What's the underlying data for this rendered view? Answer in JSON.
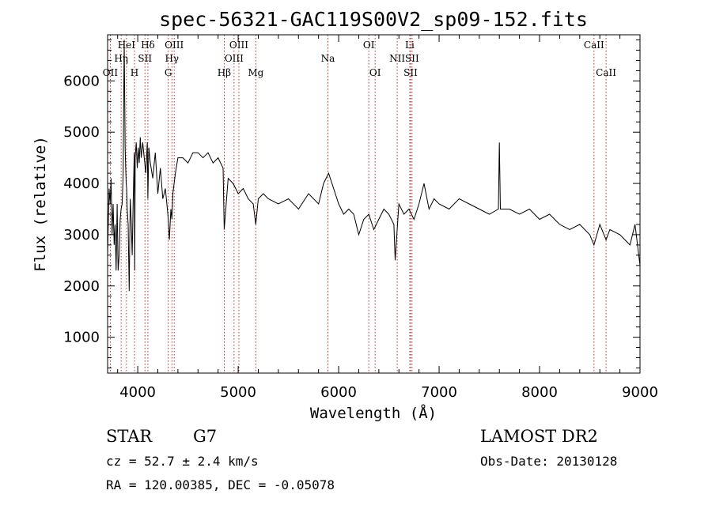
{
  "chart_data": {
    "type": "line",
    "title": "spec-56321-GAC119S00V2_sp09-152.fits",
    "xlabel": "Wavelength (Å)",
    "ylabel": "Flux (relative)",
    "xlim": [
      3700,
      9000
    ],
    "ylim": [
      300,
      6900
    ],
    "xticks": [
      4000,
      5000,
      6000,
      7000,
      8000,
      9000
    ],
    "yticks": [
      1000,
      2000,
      3000,
      4000,
      5000,
      6000
    ],
    "grid": false,
    "legend": "none",
    "line_color": "#000000",
    "marker_color": "#aa0000",
    "series": [
      {
        "x": [
          3700,
          3715,
          3725,
          3735,
          3745,
          3755,
          3765,
          3775,
          3785,
          3795,
          3805,
          3815,
          3825,
          3835,
          3845,
          3855,
          3865,
          3875,
          3880,
          3885,
          3890,
          3895,
          3905,
          3915,
          3925,
          3935,
          3945,
          3955,
          3965,
          3970,
          3975,
          3985,
          3995,
          4005,
          4015,
          4025,
          4035,
          4050,
          4065,
          4080,
          4095,
          4101,
          4110,
          4125,
          4150,
          4175,
          4200,
          4225,
          4250,
          4275,
          4300,
          4315,
          4330,
          4340,
          4350,
          4375,
          4400,
          4450,
          4500,
          4550,
          4600,
          4650,
          4700,
          4750,
          4800,
          4850,
          4861,
          4900,
          4950,
          5000,
          5050,
          5100,
          5150,
          5175,
          5200,
          5250,
          5300,
          5400,
          5500,
          5600,
          5700,
          5800,
          5850,
          5900,
          5950,
          6000,
          6050,
          6100,
          6150,
          6200,
          6250,
          6300,
          6350,
          6400,
          6450,
          6500,
          6550,
          6563,
          6600,
          6650,
          6700,
          6750,
          6800,
          6850,
          6900,
          6950,
          7000,
          7100,
          7200,
          7300,
          7400,
          7500,
          7590,
          7600,
          7610,
          7700,
          7800,
          7900,
          8000,
          8100,
          8200,
          8300,
          8400,
          8500,
          8542,
          8600,
          8662,
          8700,
          8800,
          8900,
          8950,
          9000
        ],
        "y": [
          2600,
          3900,
          3600,
          4100,
          3000,
          3600,
          2800,
          3200,
          2300,
          3600,
          2300,
          2600,
          3300,
          3500,
          3600,
          4200,
          6800,
          4700,
          4300,
          4000,
          3900,
          3500,
          3200,
          1900,
          3700,
          3300,
          2600,
          3700,
          4600,
          2300,
          4500,
          4800,
          4300,
          4700,
          4400,
          4900,
          4500,
          4800,
          4500,
          4200,
          4800,
          3700,
          4700,
          4400,
          4100,
          4600,
          3800,
          4300,
          3700,
          3900,
          3400,
          2900,
          3500,
          3300,
          3800,
          4200,
          4500,
          4500,
          4400,
          4600,
          4600,
          4500,
          4600,
          4400,
          4500,
          4300,
          3100,
          4100,
          4000,
          3800,
          3900,
          3700,
          3600,
          3200,
          3700,
          3800,
          3700,
          3600,
          3700,
          3500,
          3800,
          3600,
          4000,
          4200,
          3900,
          3600,
          3400,
          3500,
          3400,
          3000,
          3300,
          3400,
          3100,
          3300,
          3500,
          3400,
          3200,
          2500,
          3600,
          3400,
          3500,
          3300,
          3600,
          4000,
          3500,
          3700,
          3600,
          3500,
          3700,
          3600,
          3500,
          3400,
          3500,
          4800,
          3500,
          3500,
          3400,
          3500,
          3300,
          3400,
          3200,
          3100,
          3200,
          3000,
          2800,
          3200,
          2900,
          3100,
          3000,
          2800,
          3200,
          2400
        ]
      }
    ],
    "spectral_lines": [
      {
        "label": "OII",
        "x": 3727,
        "row": 3
      },
      {
        "label": "Hη",
        "x": 3835,
        "row": 2
      },
      {
        "label": "HeI",
        "x": 3888,
        "row": 1
      },
      {
        "label": "H",
        "x": 3968,
        "row": 3
      },
      {
        "label": "SII",
        "x": 4072,
        "row": 2
      },
      {
        "label": "Hδ",
        "x": 4101,
        "row": 1
      },
      {
        "label": "G",
        "x": 4304,
        "row": 3
      },
      {
        "label": "Hγ",
        "x": 4340,
        "row": 2
      },
      {
        "label": "OIII",
        "x": 4363,
        "row": 1
      },
      {
        "label": "Hβ",
        "x": 4861,
        "row": 3
      },
      {
        "label": "OIII",
        "x": 4959,
        "row": 2
      },
      {
        "label": "OIII",
        "x": 5007,
        "row": 1
      },
      {
        "label": "Mg",
        "x": 5175,
        "row": 3
      },
      {
        "label": "Na",
        "x": 5893,
        "row": 2
      },
      {
        "label": "OI",
        "x": 6300,
        "row": 1
      },
      {
        "label": "OI",
        "x": 6363,
        "row": 3
      },
      {
        "label": "NII",
        "x": 6583,
        "row": 2
      },
      {
        "label": "Li",
        "x": 6708,
        "row": 1
      },
      {
        "label": "SII",
        "x": 6716,
        "row": 3
      },
      {
        "label": "SII",
        "x": 6731,
        "row": 2
      },
      {
        "label": "CaII",
        "x": 8542,
        "row": 1
      },
      {
        "label": "CaII",
        "x": 8662,
        "row": 3
      }
    ]
  },
  "info": {
    "class_label": "STAR",
    "subclass": "G7",
    "survey": "LAMOST DR2",
    "redshift": "cz = 52.7 ± 2.4 km/s",
    "obs_date": "Obs-Date: 20130128",
    "coords": "RA = 120.00385, DEC =  -0.05078"
  }
}
